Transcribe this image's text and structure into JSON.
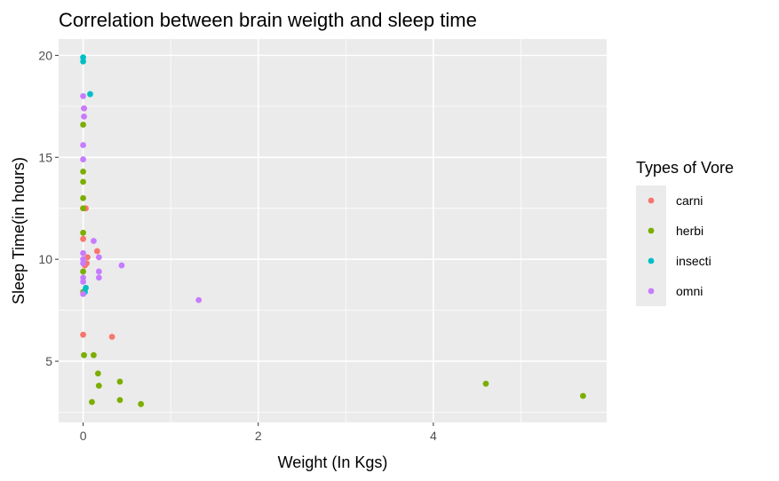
{
  "chart_data": {
    "type": "scatter",
    "title": "Correlation between brain weigth and sleep time",
    "xlabel": "Weight (In Kgs)",
    "ylabel": "Sleep Time(in hours)",
    "xlim": [
      -0.28,
      5.98
    ],
    "ylim": [
      2.0,
      20.8
    ],
    "x_ticks": [
      0,
      2,
      4
    ],
    "y_ticks": [
      5,
      10,
      15,
      20
    ],
    "grid": true,
    "legend": {
      "title": "Types of Vore",
      "position": "right",
      "entries": [
        {
          "label": "carni",
          "color": "#F8766D"
        },
        {
          "label": "herbi",
          "color": "#7CAE00"
        },
        {
          "label": "insecti",
          "color": "#00BFC4"
        },
        {
          "label": "omni",
          "color": "#C77CFF"
        }
      ]
    },
    "series": [
      {
        "name": "carni",
        "color": "#F8766D",
        "points": [
          [
            0.01,
            17.4
          ],
          [
            0.0,
            12.5
          ],
          [
            0.02,
            12.5
          ],
          [
            0.03,
            12.5
          ],
          [
            0.0,
            11.0
          ],
          [
            0.05,
            10.1
          ],
          [
            0.16,
            10.4
          ],
          [
            0.04,
            9.8
          ],
          [
            0.02,
            9.7
          ],
          [
            0.0,
            6.3
          ],
          [
            0.33,
            6.2
          ]
        ]
      },
      {
        "name": "herbi",
        "color": "#7CAE00",
        "points": [
          [
            0.0,
            16.6
          ],
          [
            0.0,
            14.3
          ],
          [
            0.0,
            13.8
          ],
          [
            0.0,
            13.0
          ],
          [
            0.0,
            12.5
          ],
          [
            0.0,
            11.3
          ],
          [
            0.0,
            9.4
          ],
          [
            0.0,
            8.4
          ],
          [
            0.01,
            5.3
          ],
          [
            0.12,
            5.3
          ],
          [
            0.17,
            4.4
          ],
          [
            0.42,
            4.0
          ],
          [
            0.18,
            3.8
          ],
          [
            0.42,
            3.1
          ],
          [
            0.1,
            3.0
          ],
          [
            0.66,
            2.9
          ],
          [
            4.6,
            3.9
          ],
          [
            5.71,
            3.3
          ]
        ]
      },
      {
        "name": "insecti",
        "color": "#00BFC4",
        "points": [
          [
            0.0,
            19.9
          ],
          [
            0.0,
            19.7
          ],
          [
            0.08,
            18.1
          ],
          [
            0.03,
            8.6
          ],
          [
            0.02,
            8.4
          ]
        ]
      },
      {
        "name": "omni",
        "color": "#C77CFF",
        "points": [
          [
            0.0,
            18.0
          ],
          [
            0.01,
            17.4
          ],
          [
            0.01,
            17.0
          ],
          [
            0.0,
            15.6
          ],
          [
            0.0,
            14.9
          ],
          [
            0.12,
            10.9
          ],
          [
            0.0,
            10.3
          ],
          [
            0.0,
            10.0
          ],
          [
            0.18,
            10.1
          ],
          [
            0.0,
            9.8
          ],
          [
            0.44,
            9.7
          ],
          [
            0.18,
            9.4
          ],
          [
            0.0,
            9.1
          ],
          [
            0.18,
            9.1
          ],
          [
            0.0,
            8.9
          ],
          [
            0.0,
            8.3
          ],
          [
            1.32,
            8.0
          ]
        ]
      }
    ]
  }
}
